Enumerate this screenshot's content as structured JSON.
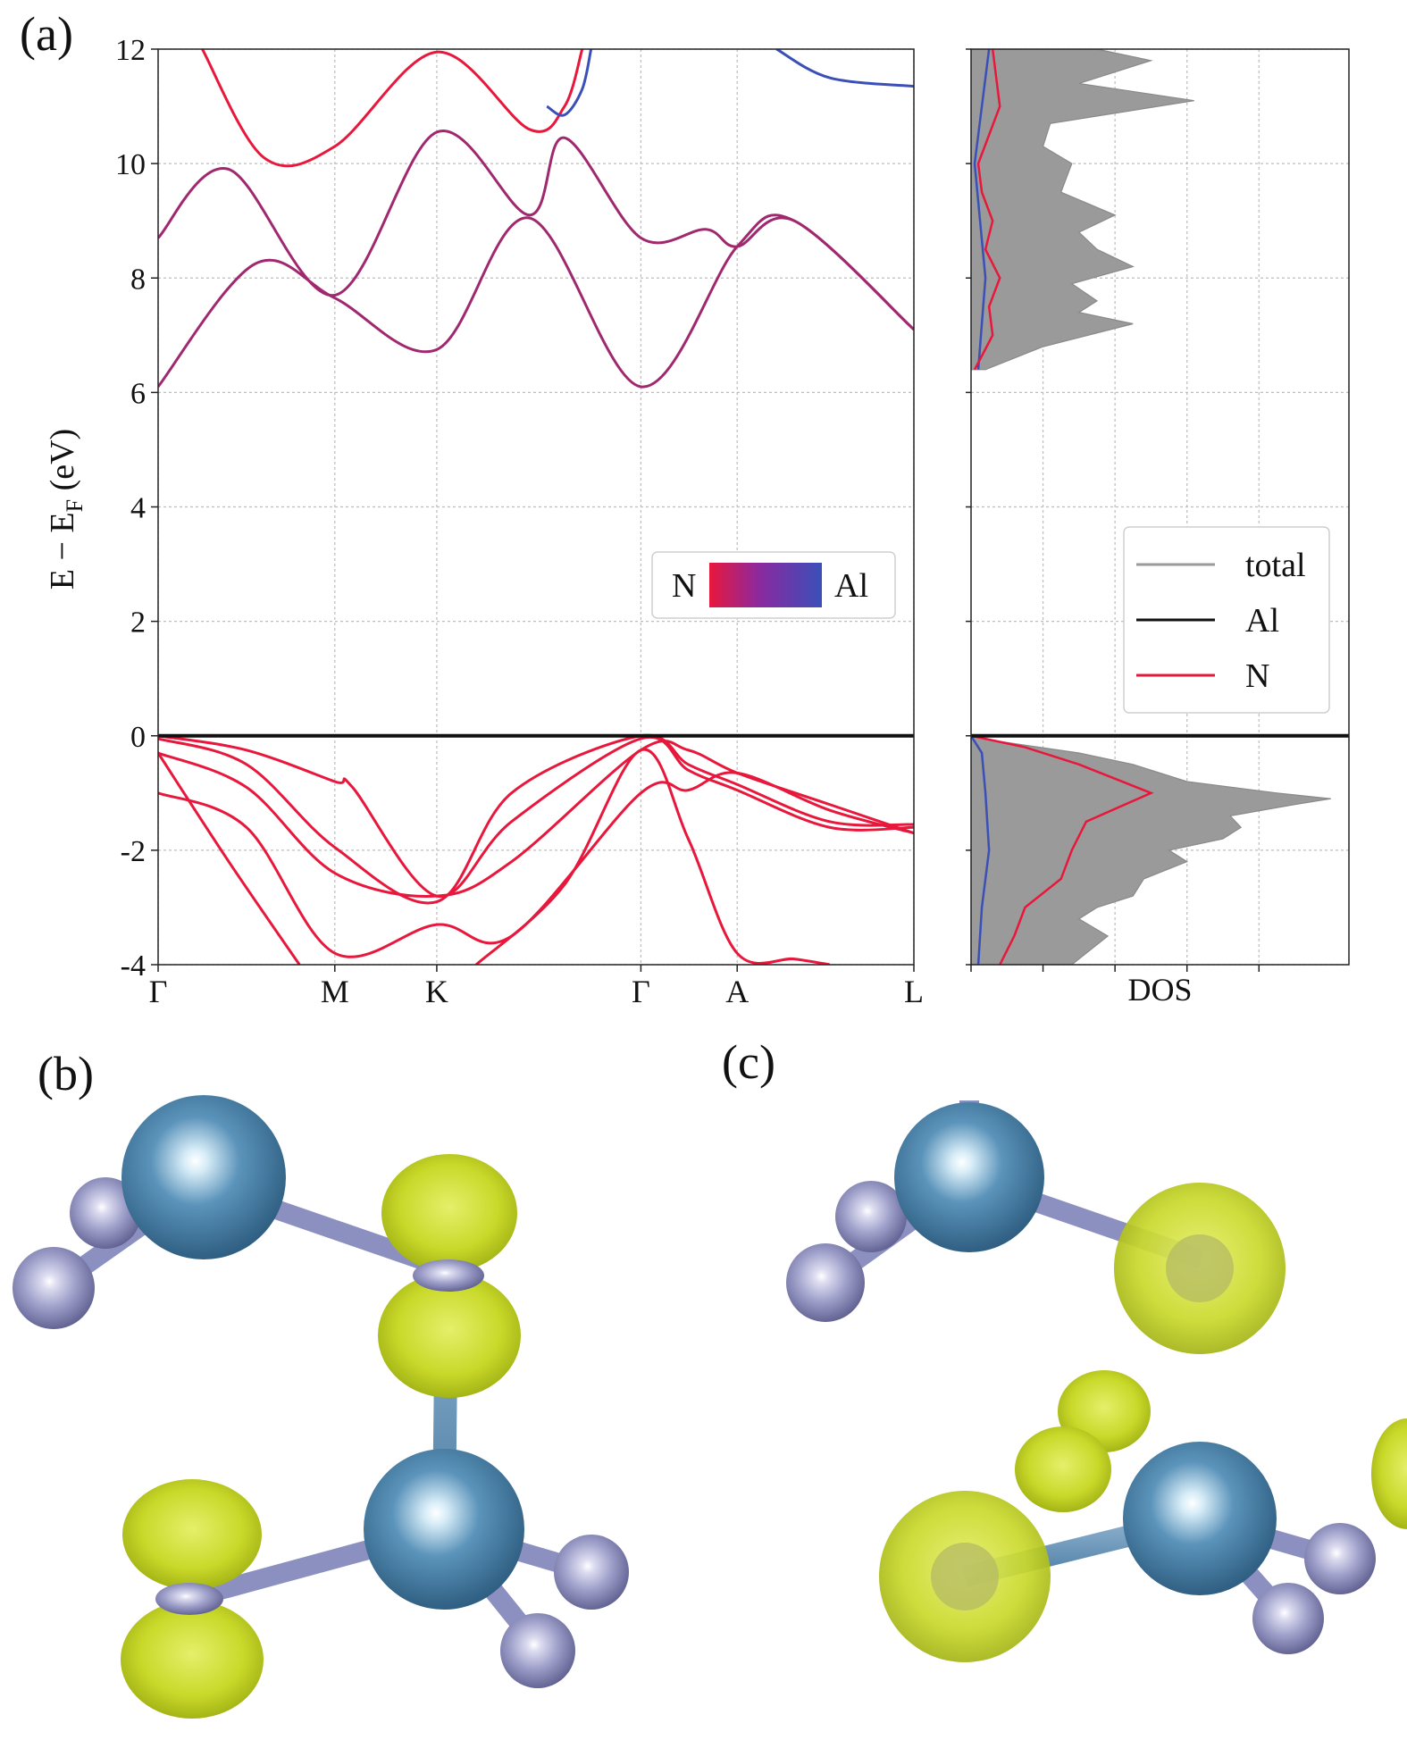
{
  "panels": {
    "a_label": "(a)",
    "b_label": "(b)",
    "c_label": "(c)"
  },
  "colors": {
    "n_red": "#e8173c",
    "al_blue": "#3a4fb8",
    "dos_fill": "#9a9a9a",
    "al_atom": "#4f86ad",
    "n_atom": "#9a9bc4",
    "isosurface": "#c9d92a"
  },
  "band_axes": {
    "ylabel": "E − E",
    "ylabel_sub": "F",
    "ylabel_unit": " (eV)",
    "ylim": [
      -4,
      12
    ],
    "yticks": [
      {
        "value": 12,
        "label": "12"
      },
      {
        "value": 10,
        "label": "10"
      },
      {
        "value": 8,
        "label": "8"
      },
      {
        "value": 6,
        "label": "6"
      },
      {
        "value": 4,
        "label": "4"
      },
      {
        "value": 2,
        "label": "2"
      },
      {
        "value": 0,
        "label": "0"
      },
      {
        "value": -2,
        "label": "-2"
      },
      {
        "value": -4,
        "label": "-4"
      }
    ],
    "kpoints": [
      {
        "k": 0.0,
        "label": "Γ"
      },
      {
        "k": 1.0,
        "label": "M"
      },
      {
        "k": 1.577,
        "label": "K"
      },
      {
        "k": 2.732,
        "label": "Γ"
      },
      {
        "k": 3.277,
        "label": "A"
      },
      {
        "k": 4.277,
        "label": "L"
      }
    ],
    "colorbar_left": "N",
    "colorbar_right": "Al"
  },
  "dos_axes": {
    "xlabel": "DOS",
    "legend": [
      {
        "label": "total",
        "color": "#9a9a9a"
      },
      {
        "label": "Al",
        "color": "#111111"
      },
      {
        "label": "N",
        "color": "#e8173c"
      }
    ]
  },
  "chart_data": [
    {
      "type": "line",
      "title": "",
      "xlabel": "",
      "ylabel": "E − E_F (eV)",
      "ylim": [
        -4,
        12
      ],
      "xlim": [
        0,
        4.277
      ],
      "grid": true,
      "fermi_level": 0,
      "series": [
        {
          "points": [
            [
              0,
              0.0
            ],
            [
              0.5,
              -0.25
            ],
            [
              1.0,
              -0.8
            ],
            [
              1.1,
              -0.9
            ],
            [
              1.577,
              -2.8
            ],
            [
              2.0,
              -1.5
            ],
            [
              2.732,
              -0.05
            ],
            [
              3.0,
              -0.6
            ],
            [
              3.277,
              -0.95
            ],
            [
              3.8,
              -1.6
            ],
            [
              4.277,
              -1.6
            ]
          ],
          "character": "N"
        },
        {
          "points": [
            [
              0,
              -0.05
            ],
            [
              0.5,
              -0.5
            ],
            [
              1.0,
              -1.95
            ],
            [
              1.577,
              -2.9
            ],
            [
              2.0,
              -1.0
            ],
            [
              2.732,
              0.0
            ],
            [
              3.0,
              -0.5
            ],
            [
              3.277,
              -0.85
            ],
            [
              3.8,
              -1.5
            ],
            [
              4.277,
              -1.55
            ]
          ],
          "character": "N"
        },
        {
          "points": [
            [
              0,
              -0.3
            ],
            [
              0.5,
              -0.9
            ],
            [
              1.0,
              -2.4
            ],
            [
              1.577,
              -2.8
            ],
            [
              2.0,
              -2.2
            ],
            [
              2.732,
              -0.25
            ],
            [
              3.0,
              -0.25
            ],
            [
              3.277,
              -0.65
            ],
            [
              3.8,
              -1.2
            ],
            [
              4.277,
              -1.7
            ]
          ],
          "character": "N"
        },
        {
          "points": [
            [
              0,
              -1.0
            ],
            [
              0.5,
              -1.6
            ],
            [
              1.0,
              -3.8
            ],
            [
              1.577,
              -3.3
            ],
            [
              2.0,
              -3.5
            ],
            [
              2.732,
              -1.0
            ],
            [
              3.0,
              -0.95
            ],
            [
              3.277,
              -0.65
            ],
            [
              3.8,
              -1.3
            ],
            [
              4.277,
              -1.7
            ]
          ],
          "character": "N"
        },
        {
          "points": [
            [
              0,
              -0.3
            ],
            [
              0.4,
              -2.2
            ],
            [
              0.8,
              -4.0
            ]
          ],
          "character": "N"
        },
        {
          "points": [
            [
              1.8,
              -4.0
            ],
            [
              2.3,
              -2.6
            ],
            [
              2.732,
              -0.25
            ],
            [
              3.0,
              -1.8
            ],
            [
              3.277,
              -3.8
            ],
            [
              3.6,
              -3.9
            ],
            [
              3.8,
              -4.0
            ]
          ],
          "character": "N"
        },
        {
          "points": [
            [
              0,
              6.1
            ],
            [
              0.55,
              8.25
            ],
            [
              1.0,
              7.65
            ],
            [
              1.577,
              6.75
            ],
            [
              2.1,
              9.05
            ],
            [
              2.732,
              6.1
            ],
            [
              3.277,
              8.55
            ],
            [
              3.6,
              9.0
            ],
            [
              4.277,
              7.1
            ]
          ],
          "character": "mixed"
        },
        {
          "points": [
            [
              0,
              8.7
            ],
            [
              0.4,
              9.9
            ],
            [
              1.0,
              7.7
            ],
            [
              1.577,
              10.55
            ],
            [
              2.1,
              9.1
            ],
            [
              2.3,
              10.45
            ],
            [
              2.732,
              8.7
            ],
            [
              3.1,
              8.85
            ],
            [
              3.277,
              8.55
            ],
            [
              3.6,
              9.0
            ],
            [
              4.277,
              7.1
            ]
          ],
          "character": "mixed"
        },
        {
          "points": [
            [
              0.25,
              12.0
            ],
            [
              0.6,
              10.1
            ],
            [
              1.0,
              10.3
            ],
            [
              1.577,
              11.95
            ],
            [
              2.1,
              10.6
            ],
            [
              2.3,
              11.0
            ],
            [
              2.4,
              12.0
            ]
          ],
          "character": "N"
        },
        {
          "points": [
            [
              2.2,
              11.0
            ],
            [
              2.3,
              10.85
            ],
            [
              2.4,
              11.3
            ],
            [
              2.45,
              12.0
            ]
          ],
          "character": "Al"
        },
        {
          "points": [
            [
              3.5,
              12.0
            ],
            [
              3.8,
              11.5
            ],
            [
              4.277,
              11.35
            ]
          ],
          "character": "Al"
        }
      ]
    },
    {
      "type": "area",
      "title": "",
      "xlabel": "DOS",
      "ylabel": "",
      "ylim": [
        -4,
        12
      ],
      "legend_position": "right",
      "series": [
        {
          "name": "total",
          "y": [
            -4,
            -3.5,
            -3.2,
            -3,
            -2.8,
            -2.5,
            -2.2,
            -2,
            -1.8,
            -1.6,
            -1.4,
            -1.2,
            -1.1,
            -1.0,
            -0.8,
            -0.5,
            -0.3,
            -0.1,
            0,
            6.4,
            6.8,
            7.2,
            7.4,
            7.6,
            7.9,
            8.2,
            8.5,
            8.8,
            9.1,
            9.5,
            10.0,
            10.3,
            10.7,
            11.1,
            11.4,
            11.8,
            12
          ],
          "values": [
            0.28,
            0.38,
            0.3,
            0.35,
            0.45,
            0.48,
            0.6,
            0.55,
            0.7,
            0.75,
            0.72,
            0.9,
            1.0,
            0.85,
            0.6,
            0.45,
            0.3,
            0.08,
            0,
            0.04,
            0.2,
            0.45,
            0.3,
            0.35,
            0.28,
            0.45,
            0.35,
            0.3,
            0.4,
            0.25,
            0.28,
            0.2,
            0.22,
            0.62,
            0.3,
            0.5,
            0.35
          ]
        },
        {
          "name": "Al",
          "y": [
            -4,
            -3,
            -2,
            -1,
            -0.3,
            0,
            6.4,
            8,
            10,
            12
          ],
          "values": [
            0.02,
            0.03,
            0.05,
            0.04,
            0.03,
            0,
            0.02,
            0.04,
            0.01,
            0.05
          ]
        },
        {
          "name": "N",
          "y": [
            -4,
            -3.5,
            -3,
            -2.5,
            -2,
            -1.5,
            -1,
            -0.5,
            -0.2,
            0,
            6.4,
            7,
            7.5,
            8,
            8.5,
            9,
            9.5,
            10,
            11,
            12
          ],
          "values": [
            0.08,
            0.12,
            0.15,
            0.25,
            0.28,
            0.32,
            0.5,
            0.3,
            0.15,
            0,
            0.01,
            0.06,
            0.05,
            0.08,
            0.04,
            0.06,
            0.03,
            0.02,
            0.08,
            0.06
          ]
        }
      ]
    }
  ]
}
